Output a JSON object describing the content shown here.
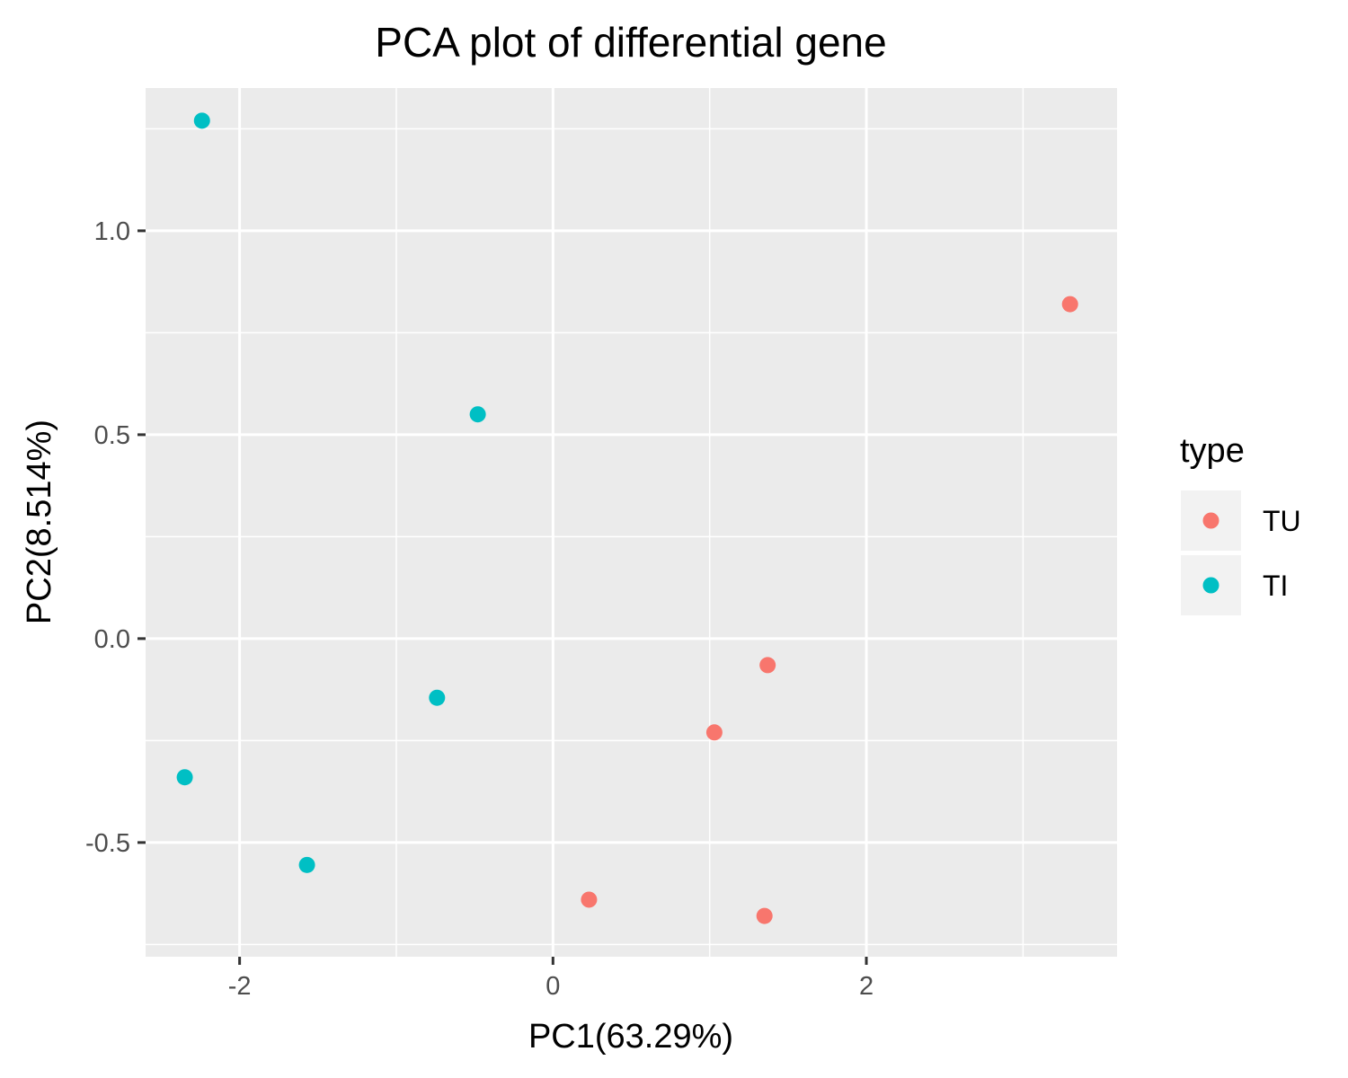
{
  "chart_data": {
    "type": "scatter",
    "title": "PCA plot of differential gene",
    "xlabel": "PC1(63.29%)",
    "ylabel": "PC2(8.514%)",
    "xlim": [
      -2.6,
      3.6
    ],
    "ylim": [
      -0.78,
      1.35
    ],
    "x_ticks": [
      -2,
      0,
      2
    ],
    "x_tick_labels": [
      "-2",
      "0",
      "2"
    ],
    "y_ticks": [
      -0.5,
      0.0,
      0.5,
      1.0
    ],
    "y_tick_labels": [
      "-0.5",
      "0.0",
      "0.5",
      "1.0"
    ],
    "grid": true,
    "legend": {
      "title": "type",
      "position": "right",
      "entries": [
        {
          "label": "TU",
          "color": "#F8766D"
        },
        {
          "label": "TI",
          "color": "#00BFC4"
        }
      ]
    },
    "series": [
      {
        "name": "TU",
        "color": "#F8766D",
        "points": [
          {
            "x": 3.3,
            "y": 0.82
          },
          {
            "x": 1.37,
            "y": -0.065
          },
          {
            "x": 1.03,
            "y": -0.23
          },
          {
            "x": 0.23,
            "y": -0.64
          },
          {
            "x": 1.35,
            "y": -0.68
          }
        ]
      },
      {
        "name": "TI",
        "color": "#00BFC4",
        "points": [
          {
            "x": -2.24,
            "y": 1.27
          },
          {
            "x": -0.48,
            "y": 0.55
          },
          {
            "x": -0.74,
            "y": -0.145
          },
          {
            "x": -2.35,
            "y": -0.34
          },
          {
            "x": -1.57,
            "y": -0.555
          }
        ]
      }
    ]
  }
}
